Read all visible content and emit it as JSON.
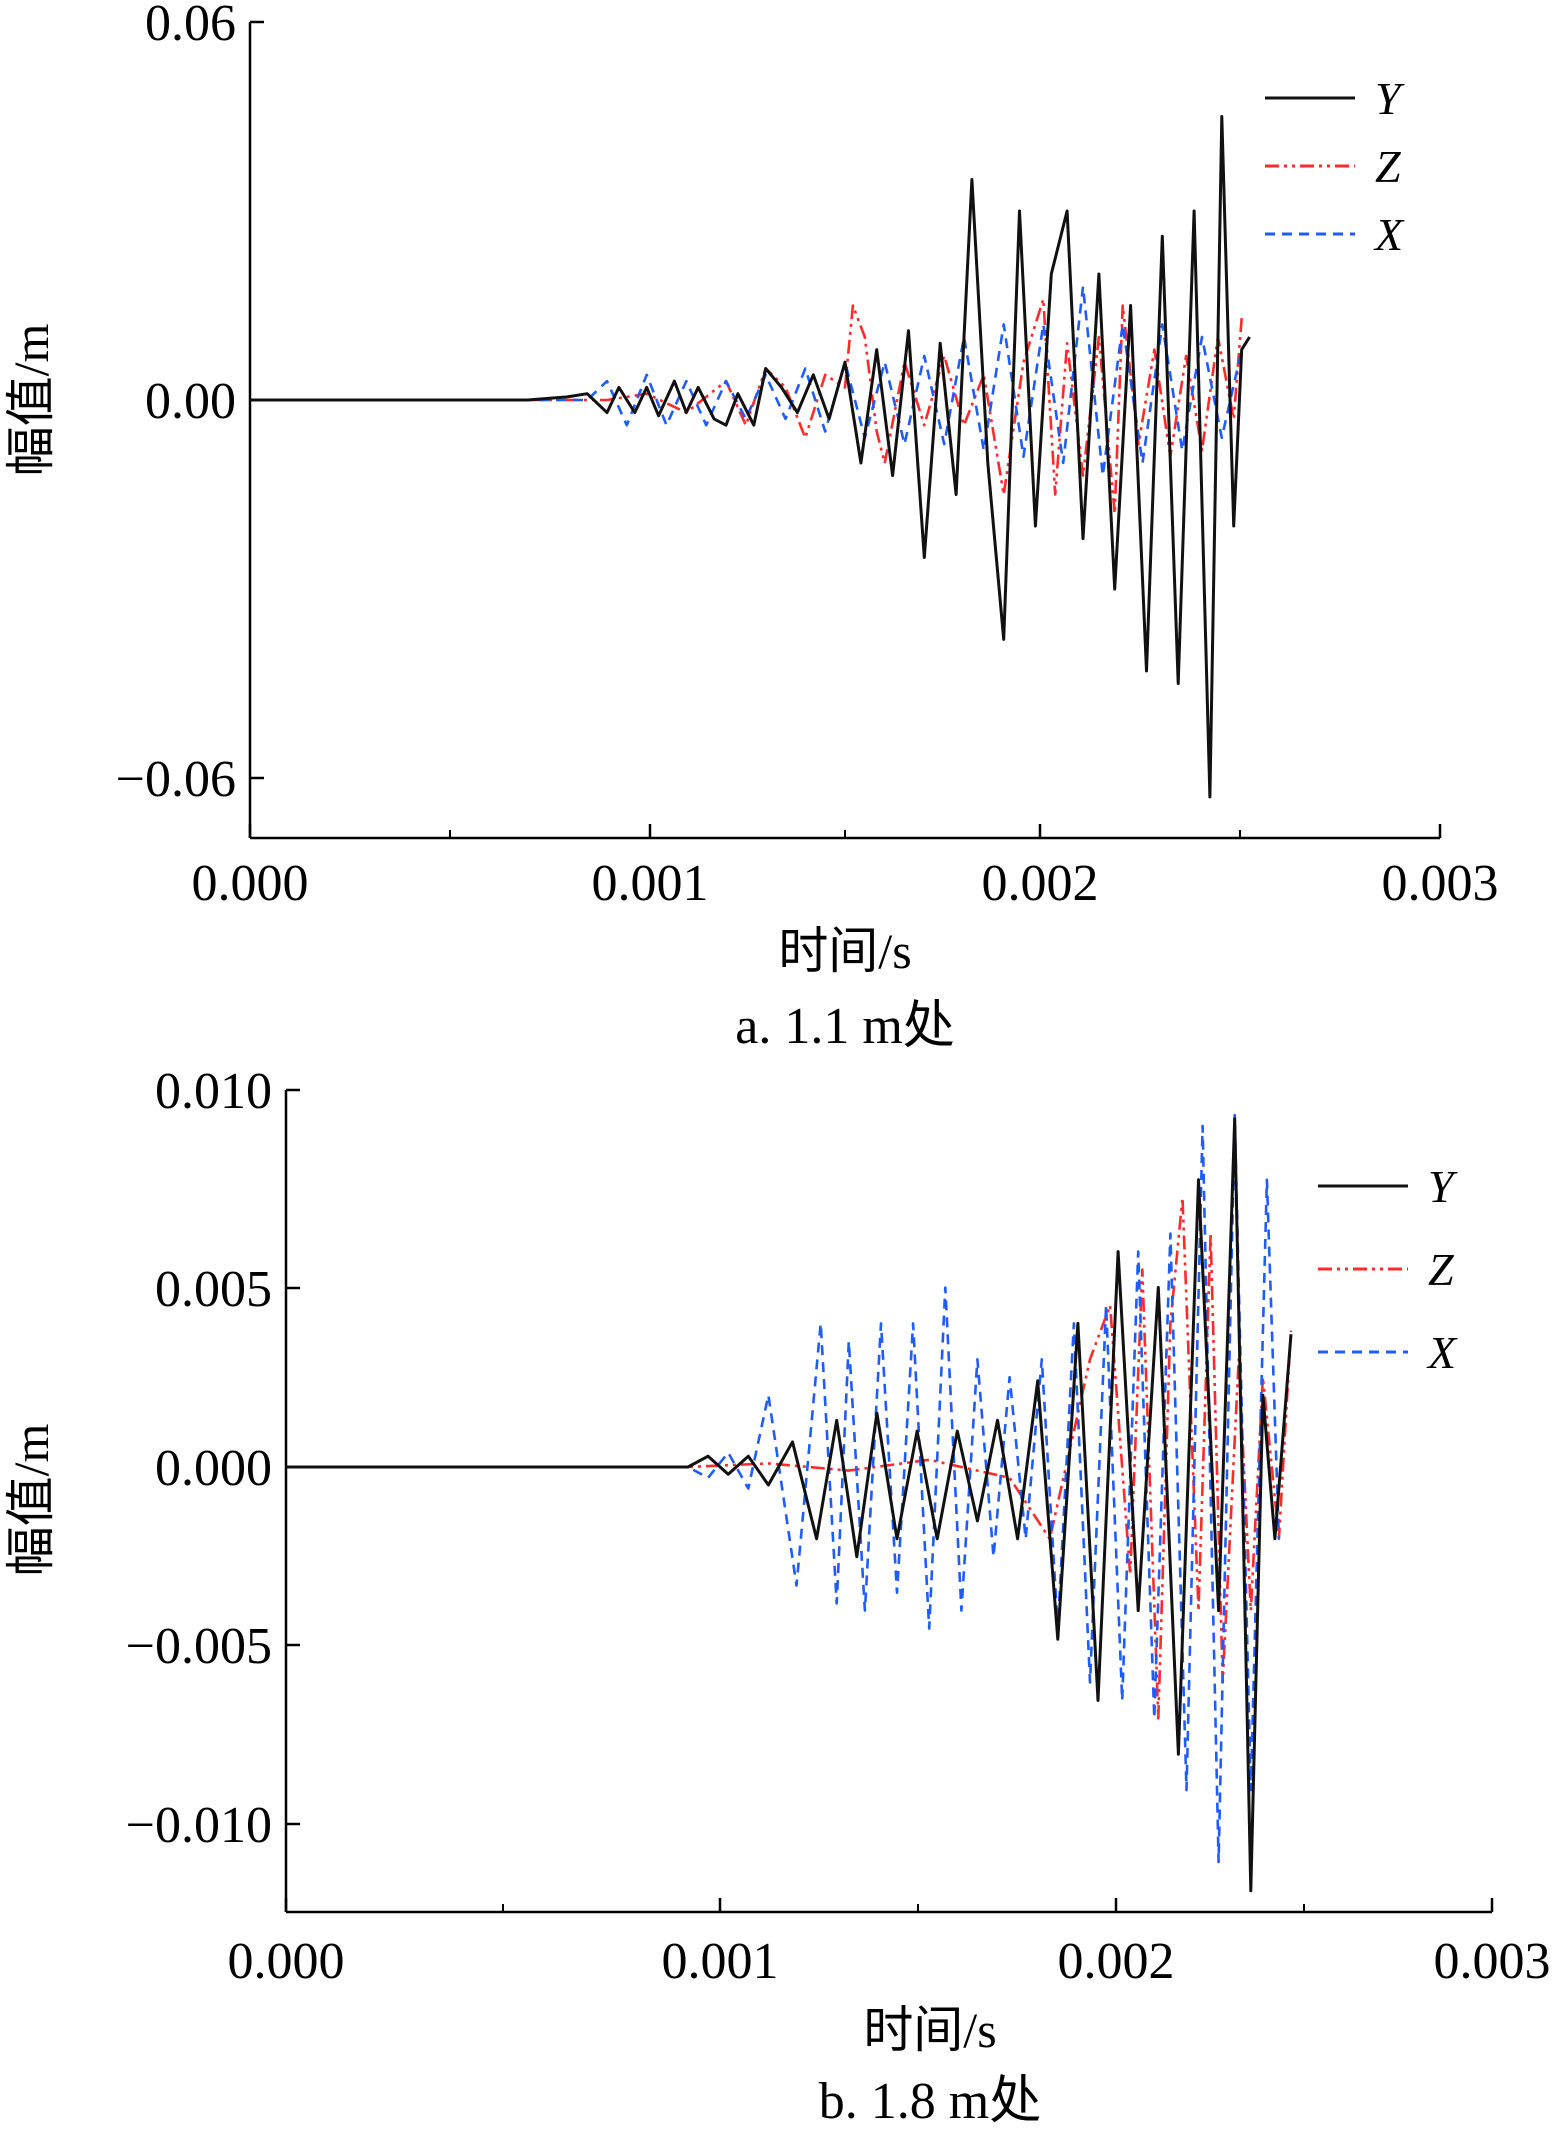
{
  "chart_data": [
    {
      "type": "line",
      "caption": "a. 1.1 m处",
      "xlabel": "时间/s",
      "ylabel": "幅值/m",
      "xlim": [
        0,
        0.003
      ],
      "ylim": [
        -0.0635,
        0.06
      ],
      "xticks": [
        "0.000",
        "0.001",
        "0.002",
        "0.003"
      ],
      "yticks": [
        "0.06",
        "0.00",
        "−0.06"
      ],
      "legend": {
        "position": "top-right",
        "entries": [
          "Y",
          "Z",
          "X"
        ]
      },
      "grid": false,
      "series": [
        {
          "name": "Y",
          "color": "#111111",
          "dash": "solid",
          "x": [
            0,
            0.0007,
            0.0008,
            0.00085,
            0.0009,
            0.00093,
            0.00097,
            0.001,
            0.00103,
            0.00107,
            0.0011,
            0.00113,
            0.00117,
            0.0012,
            0.00123,
            0.00127,
            0.0013,
            0.00134,
            0.00138,
            0.00142,
            0.00146,
            0.0015,
            0.00154,
            0.00158,
            0.00162,
            0.00166,
            0.0017,
            0.00174,
            0.00178,
            0.00182,
            0.00186,
            0.0019,
            0.00194,
            0.00198,
            0.00202,
            0.00206,
            0.0021,
            0.00214,
            0.00218,
            0.00222,
            0.00226,
            0.0023,
            0.00234,
            0.00238,
            0.00242,
            0.00245,
            0.00248,
            0.0025,
            0.00252
          ],
          "y": [
            0,
            0,
            0.0005,
            0.001,
            -0.002,
            0.002,
            -0.002,
            0.002,
            -0.0025,
            0.003,
            -0.002,
            0.002,
            -0.003,
            -0.004,
            0.001,
            -0.004,
            0.005,
            0.002,
            -0.002,
            0.004,
            -0.003,
            0.006,
            -0.01,
            0.008,
            -0.012,
            0.011,
            -0.025,
            0.009,
            -0.015,
            0.035,
            -0.01,
            -0.038,
            0.03,
            -0.02,
            0.02,
            0.03,
            -0.022,
            0.02,
            -0.03,
            0.015,
            -0.043,
            0.026,
            -0.045,
            0.03,
            -0.063,
            0.045,
            -0.02,
            0.008,
            0.01
          ]
        },
        {
          "name": "Z",
          "color": "#ff2a2a",
          "dash": "14 5 3 5 3 5",
          "x": [
            0,
            0.0009,
            0.001,
            0.0011,
            0.0012,
            0.00125,
            0.0013,
            0.00135,
            0.0014,
            0.00145,
            0.0015,
            0.00152,
            0.00155,
            0.00158,
            0.0016,
            0.00165,
            0.0017,
            0.00175,
            0.0018,
            0.00185,
            0.0019,
            0.00195,
            0.002,
            0.00203,
            0.00206,
            0.0021,
            0.00214,
            0.00218,
            0.0022,
            0.00224,
            0.00228,
            0.00232,
            0.00236,
            0.0024,
            0.00244,
            0.00248,
            0.0025
          ],
          "y": [
            0,
            0,
            0.001,
            -0.002,
            0.003,
            -0.004,
            0.005,
            0.002,
            -0.006,
            0.004,
            0.002,
            0.015,
            0.01,
            -0.005,
            -0.01,
            0.006,
            -0.004,
            0.007,
            -0.004,
            0.004,
            -0.015,
            0.006,
            0.016,
            -0.015,
            0.009,
            -0.012,
            0.01,
            -0.018,
            0.015,
            -0.007,
            0.008,
            -0.009,
            0.007,
            -0.008,
            0.01,
            -0.003,
            0.013
          ]
        },
        {
          "name": "X",
          "color": "#1f5cff",
          "dash": "10 7",
          "x": [
            0,
            0.00085,
            0.0009,
            0.00095,
            0.001,
            0.00105,
            0.0011,
            0.00115,
            0.0012,
            0.00125,
            0.0013,
            0.00135,
            0.0014,
            0.00145,
            0.0015,
            0.00155,
            0.0016,
            0.00165,
            0.0017,
            0.00175,
            0.0018,
            0.00185,
            0.0019,
            0.00195,
            0.002,
            0.00205,
            0.0021,
            0.00215,
            0.0022,
            0.00225,
            0.0023,
            0.00235,
            0.0024,
            0.00245,
            0.0025
          ],
          "y": [
            0,
            0,
            0.003,
            -0.004,
            0.004,
            -0.004,
            0.003,
            -0.004,
            0.003,
            -0.003,
            0.004,
            -0.003,
            0.005,
            -0.005,
            0.006,
            -0.006,
            0.006,
            -0.007,
            0.007,
            -0.007,
            0.01,
            -0.008,
            0.012,
            -0.009,
            0.012,
            -0.01,
            0.018,
            -0.012,
            0.012,
            -0.01,
            0.012,
            -0.008,
            0.01,
            -0.006,
            0.008
          ]
        }
      ]
    },
    {
      "type": "line",
      "caption": "b. 1.8 m处",
      "xlabel": "时间/s",
      "ylabel": "幅值/m",
      "xlim": [
        0,
        0.003
      ],
      "ylim": [
        -0.0122,
        0.0105
      ],
      "xticks": [
        "0.000",
        "0.001",
        "0.002",
        "0.003"
      ],
      "yticks": [
        "0.010",
        "0.005",
        "0.000",
        "−0.005",
        "−0.010"
      ],
      "legend": {
        "position": "top-right",
        "entries": [
          "Y",
          "Z",
          "X"
        ]
      },
      "grid": false,
      "series": [
        {
          "name": "Y",
          "color": "#111111",
          "dash": "solid",
          "x": [
            0,
            0.001,
            0.00105,
            0.0011,
            0.00115,
            0.0012,
            0.00126,
            0.00132,
            0.00137,
            0.00142,
            0.00147,
            0.00152,
            0.00157,
            0.00162,
            0.00167,
            0.00172,
            0.00177,
            0.00182,
            0.00187,
            0.00192,
            0.00197,
            0.00202,
            0.00207,
            0.00212,
            0.00217,
            0.00222,
            0.00227,
            0.00232,
            0.00236,
            0.0024,
            0.00243,
            0.00246,
            0.0025
          ],
          "y": [
            0,
            0,
            0.0003,
            -0.0002,
            0.0003,
            -0.0005,
            0.0007,
            -0.002,
            0.0013,
            -0.0025,
            0.0015,
            -0.002,
            0.001,
            -0.002,
            0.001,
            -0.0015,
            0.0013,
            -0.002,
            0.0024,
            -0.0048,
            0.004,
            -0.0065,
            0.006,
            -0.004,
            0.005,
            -0.008,
            0.008,
            -0.004,
            0.0097,
            -0.0118,
            0.002,
            -0.002,
            0.0037
          ]
        },
        {
          "name": "Z",
          "color": "#ff2a2a",
          "dash": "14 5 3 5 3 5",
          "x": [
            0,
            0.001,
            0.0012,
            0.0014,
            0.0016,
            0.0018,
            0.0019,
            0.002,
            0.00205,
            0.0021,
            0.00213,
            0.00217,
            0.0022,
            0.00223,
            0.00227,
            0.0023,
            0.00233,
            0.00237,
            0.0024,
            0.00243,
            0.00247,
            0.0025
          ],
          "y": [
            0,
            0,
            0.0001,
            -0.0001,
            0.0002,
            -0.0003,
            -0.002,
            0.003,
            0.0045,
            -0.003,
            0.0055,
            -0.007,
            0.004,
            0.0075,
            -0.004,
            0.0065,
            -0.006,
            0.003,
            -0.004,
            0.0025,
            -0.002,
            0.0038
          ]
        },
        {
          "name": "X",
          "color": "#1f5cff",
          "dash": "10 7",
          "x": [
            0,
            0.001,
            0.00105,
            0.0011,
            0.00115,
            0.0012,
            0.00127,
            0.00133,
            0.00137,
            0.0014,
            0.00144,
            0.00148,
            0.00152,
            0.00156,
            0.0016,
            0.00164,
            0.00168,
            0.00172,
            0.00176,
            0.0018,
            0.00184,
            0.00188,
            0.00192,
            0.00196,
            0.002,
            0.00204,
            0.00208,
            0.00212,
            0.00216,
            0.0022,
            0.00224,
            0.00228,
            0.00232,
            0.00236,
            0.0024,
            0.00244,
            0.00247
          ],
          "y": [
            0,
            0,
            -0.0003,
            0.0004,
            -0.0006,
            0.002,
            -0.0033,
            0.004,
            -0.0038,
            0.0035,
            -0.004,
            0.004,
            -0.0035,
            0.004,
            -0.0045,
            0.005,
            -0.004,
            0.003,
            -0.0025,
            0.0025,
            -0.002,
            0.003,
            -0.0045,
            0.004,
            -0.006,
            0.0045,
            -0.0065,
            0.006,
            -0.007,
            0.0065,
            -0.009,
            0.0095,
            -0.011,
            0.0098,
            -0.009,
            0.008,
            -0.002
          ]
        }
      ]
    }
  ]
}
